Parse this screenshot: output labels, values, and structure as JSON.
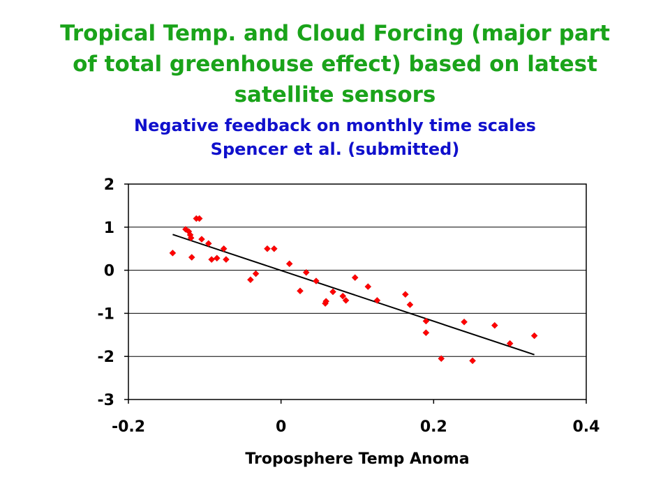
{
  "title_lines": [
    "Tropical Temp. and Cloud Forcing (major part",
    "of total greenhouse effect) based on latest",
    "satellite sensors"
  ],
  "subtitle_lines": [
    "Negative feedback on monthly time scales",
    "Spencer et al. (submitted)"
  ],
  "colors": {
    "title": "#1aa31a",
    "subtitle": "#1010cc",
    "points": "#ff0000",
    "trend": "#000000"
  },
  "chart_data": {
    "type": "scatter",
    "xlabel": "Troposphere Temp Anoma",
    "ylabel": "",
    "xlim": [
      -0.2,
      0.4
    ],
    "ylim": [
      -3,
      2
    ],
    "xticks": [
      -0.2,
      0,
      0.2,
      0.4
    ],
    "xtick_labels": [
      "-0.2",
      "0",
      "0.2",
      "0.4"
    ],
    "yticks": [
      -3,
      -2,
      -1,
      0,
      1,
      2
    ],
    "ytick_labels": [
      "-3",
      "-2",
      "-1",
      "0",
      "1",
      "2"
    ],
    "grid": "horizontal",
    "points": [
      [
        -0.142,
        0.4
      ],
      [
        -0.125,
        0.95
      ],
      [
        -0.121,
        0.9
      ],
      [
        -0.119,
        0.82
      ],
      [
        -0.118,
        0.75
      ],
      [
        -0.117,
        0.3
      ],
      [
        -0.111,
        1.2
      ],
      [
        -0.107,
        1.2
      ],
      [
        -0.104,
        0.72
      ],
      [
        -0.095,
        0.62
      ],
      [
        -0.091,
        0.25
      ],
      [
        -0.084,
        0.28
      ],
      [
        -0.075,
        0.5
      ],
      [
        -0.072,
        0.25
      ],
      [
        -0.04,
        -0.22
      ],
      [
        -0.033,
        -0.08
      ],
      [
        -0.018,
        0.5
      ],
      [
        -0.009,
        0.5
      ],
      [
        0.011,
        0.15
      ],
      [
        0.025,
        -0.48
      ],
      [
        0.033,
        -0.05
      ],
      [
        0.046,
        -0.25
      ],
      [
        0.058,
        -0.77
      ],
      [
        0.059,
        -0.72
      ],
      [
        0.068,
        -0.5
      ],
      [
        0.081,
        -0.6
      ],
      [
        0.085,
        -0.7
      ],
      [
        0.097,
        -0.17
      ],
      [
        0.114,
        -0.38
      ],
      [
        0.126,
        -0.7
      ],
      [
        0.163,
        -0.56
      ],
      [
        0.169,
        -0.8
      ],
      [
        0.19,
        -1.18
      ],
      [
        0.19,
        -1.45
      ],
      [
        0.21,
        -2.05
      ],
      [
        0.24,
        -1.2
      ],
      [
        0.251,
        -2.1
      ],
      [
        0.28,
        -1.28
      ],
      [
        0.3,
        -1.7
      ],
      [
        0.332,
        -1.52
      ]
    ],
    "trendline": {
      "x": [
        -0.142,
        0.332
      ],
      "y": [
        0.83,
        -1.96
      ]
    }
  }
}
